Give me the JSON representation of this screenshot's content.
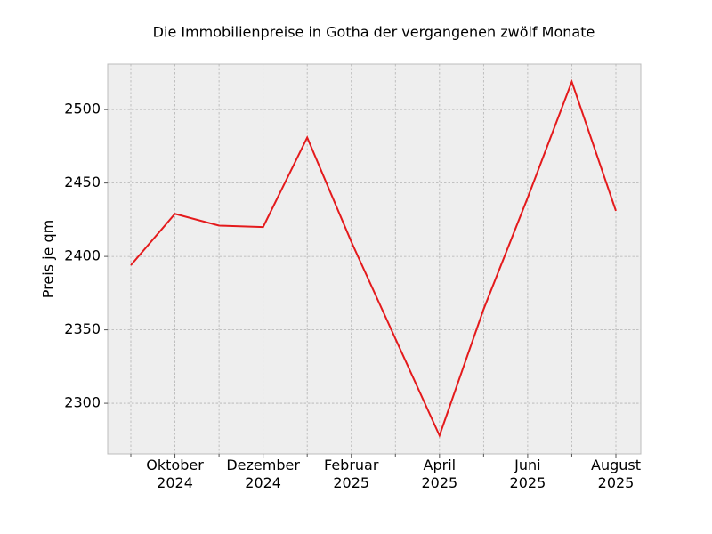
{
  "chart_data": {
    "type": "line",
    "title": "Die Immobilienpreise in Gotha der vergangenen zwölf Monate",
    "y_label": "Preis je qm",
    "categories": [
      null,
      "Oktober\n2024",
      null,
      "Dezember\n2024",
      null,
      "Februar\n2025",
      null,
      "April\n2025",
      null,
      "Juni\n2025",
      null,
      "August\n2025"
    ],
    "values": [
      2394,
      2429,
      2421,
      2420,
      2481,
      2410,
      2344,
      2278,
      2364,
      2440,
      2519,
      2431
    ],
    "color": "#e41a1c",
    "ylim": [
      2265.5,
      2531
    ],
    "yticks": [
      2300,
      2350,
      2400,
      2450,
      2500
    ],
    "grid": true
  }
}
